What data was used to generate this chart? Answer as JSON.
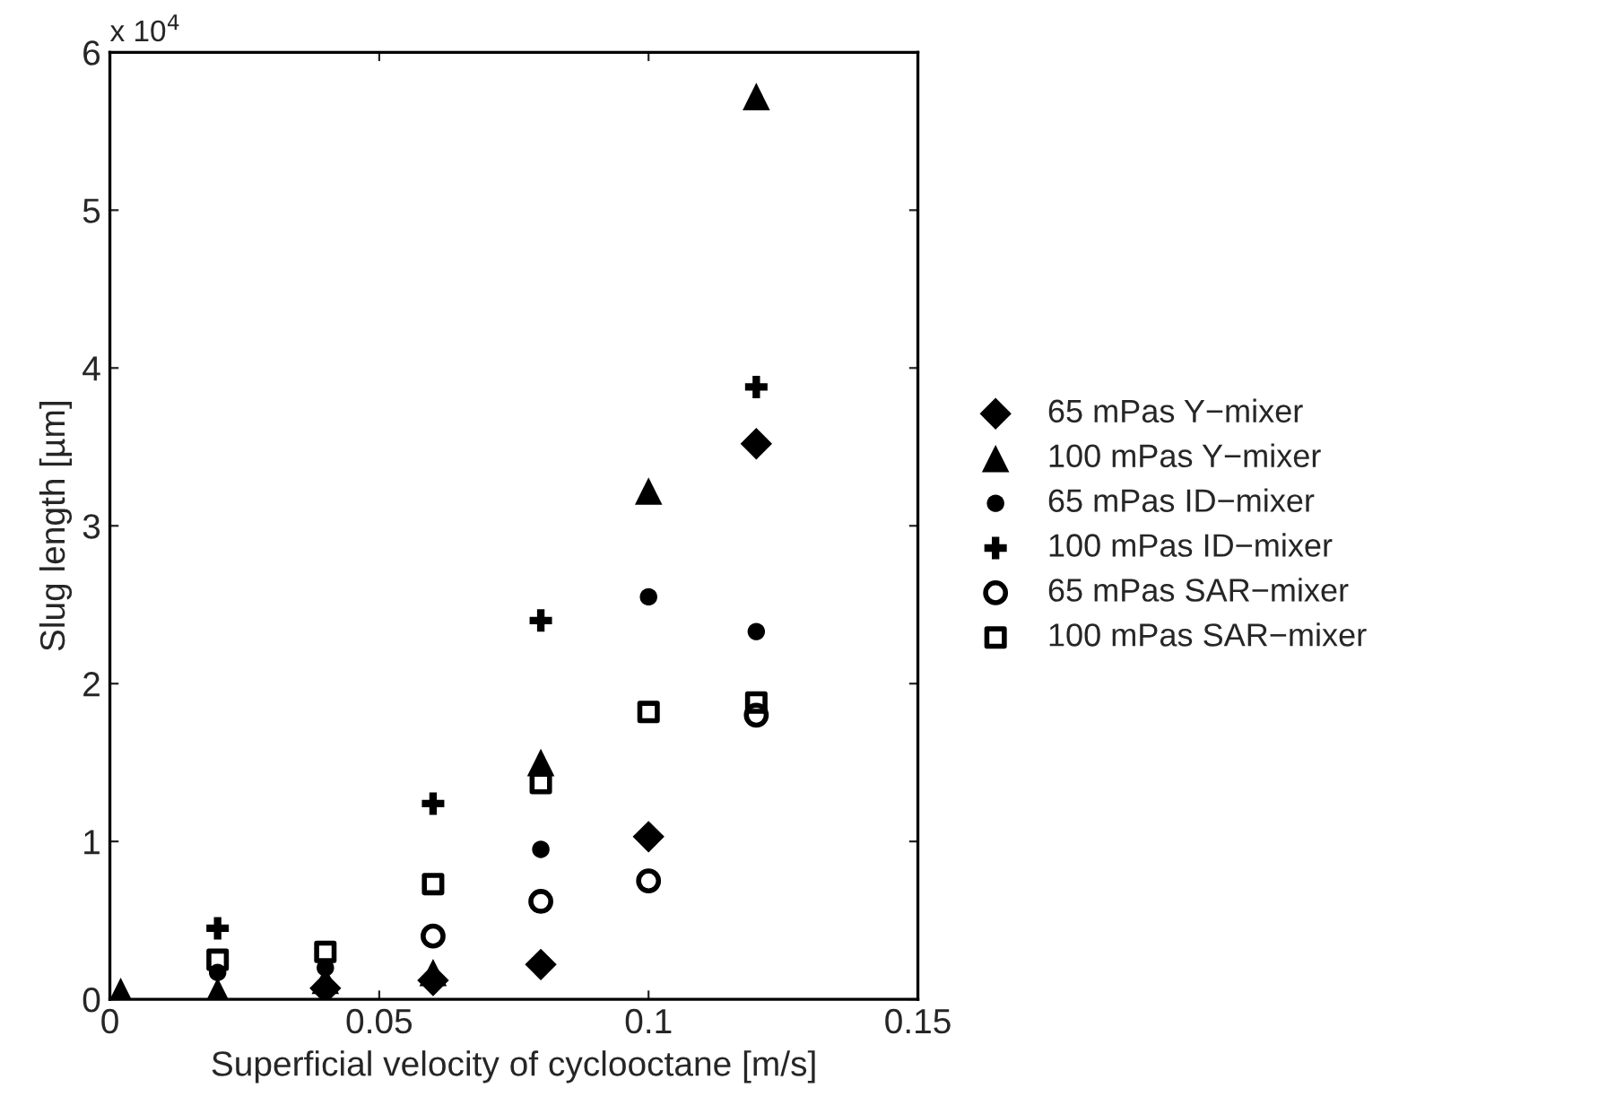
{
  "chart_data": {
    "type": "scatter",
    "xlabel": "Superficial velocity of cyclooctane [m/s]",
    "ylabel": "Slug length [µm]",
    "annotations": [
      "x 10$^{4}$"
    ],
    "x": [
      0.002,
      0.02,
      0.04,
      0.06,
      0.08,
      0.1,
      0.12
    ],
    "series": [
      {
        "name": "65 mPas Y−mixer",
        "color": "#000000",
        "marker": "diamond",
        "values": [
          null,
          null,
          0.07,
          0.12,
          0.22,
          1.03,
          3.52
        ]
      },
      {
        "name": "100 mPas Y−mixer",
        "color": "#000000",
        "marker": "triangle",
        "values": [
          0.05,
          0.05,
          0.12,
          0.17,
          1.5,
          3.22,
          5.72
        ]
      },
      {
        "name": "65 mPas ID−mixer",
        "color": "#000000",
        "marker": "circle",
        "values": [
          null,
          0.17,
          0.2,
          null,
          0.95,
          2.55,
          2.33
        ]
      },
      {
        "name": "100 mPas ID−mixer",
        "color": "#000000",
        "marker": "cross",
        "values": [
          null,
          0.45,
          null,
          1.24,
          2.4,
          null,
          3.88
        ]
      },
      {
        "name": "65 mPas SAR−mixer",
        "color": "#000000",
        "marker": "open circle",
        "values": [
          null,
          null,
          null,
          0.4,
          0.62,
          0.75,
          1.8
        ]
      },
      {
        "name": "100 mPas SAR−mixer",
        "color": "#000000",
        "marker": "square",
        "values": [
          null,
          0.25,
          0.3,
          0.73,
          1.37,
          1.82,
          1.88
        ]
      }
    ],
    "xlim": [
      0,
      0.15
    ],
    "xticks": [
      0,
      0.05,
      0.1,
      0.15
    ],
    "ylim": [
      0,
      6
    ],
    "yticks": [
      0,
      1,
      2,
      3,
      4,
      5,
      6
    ],
    "grid": false,
    "legend": "right"
  }
}
